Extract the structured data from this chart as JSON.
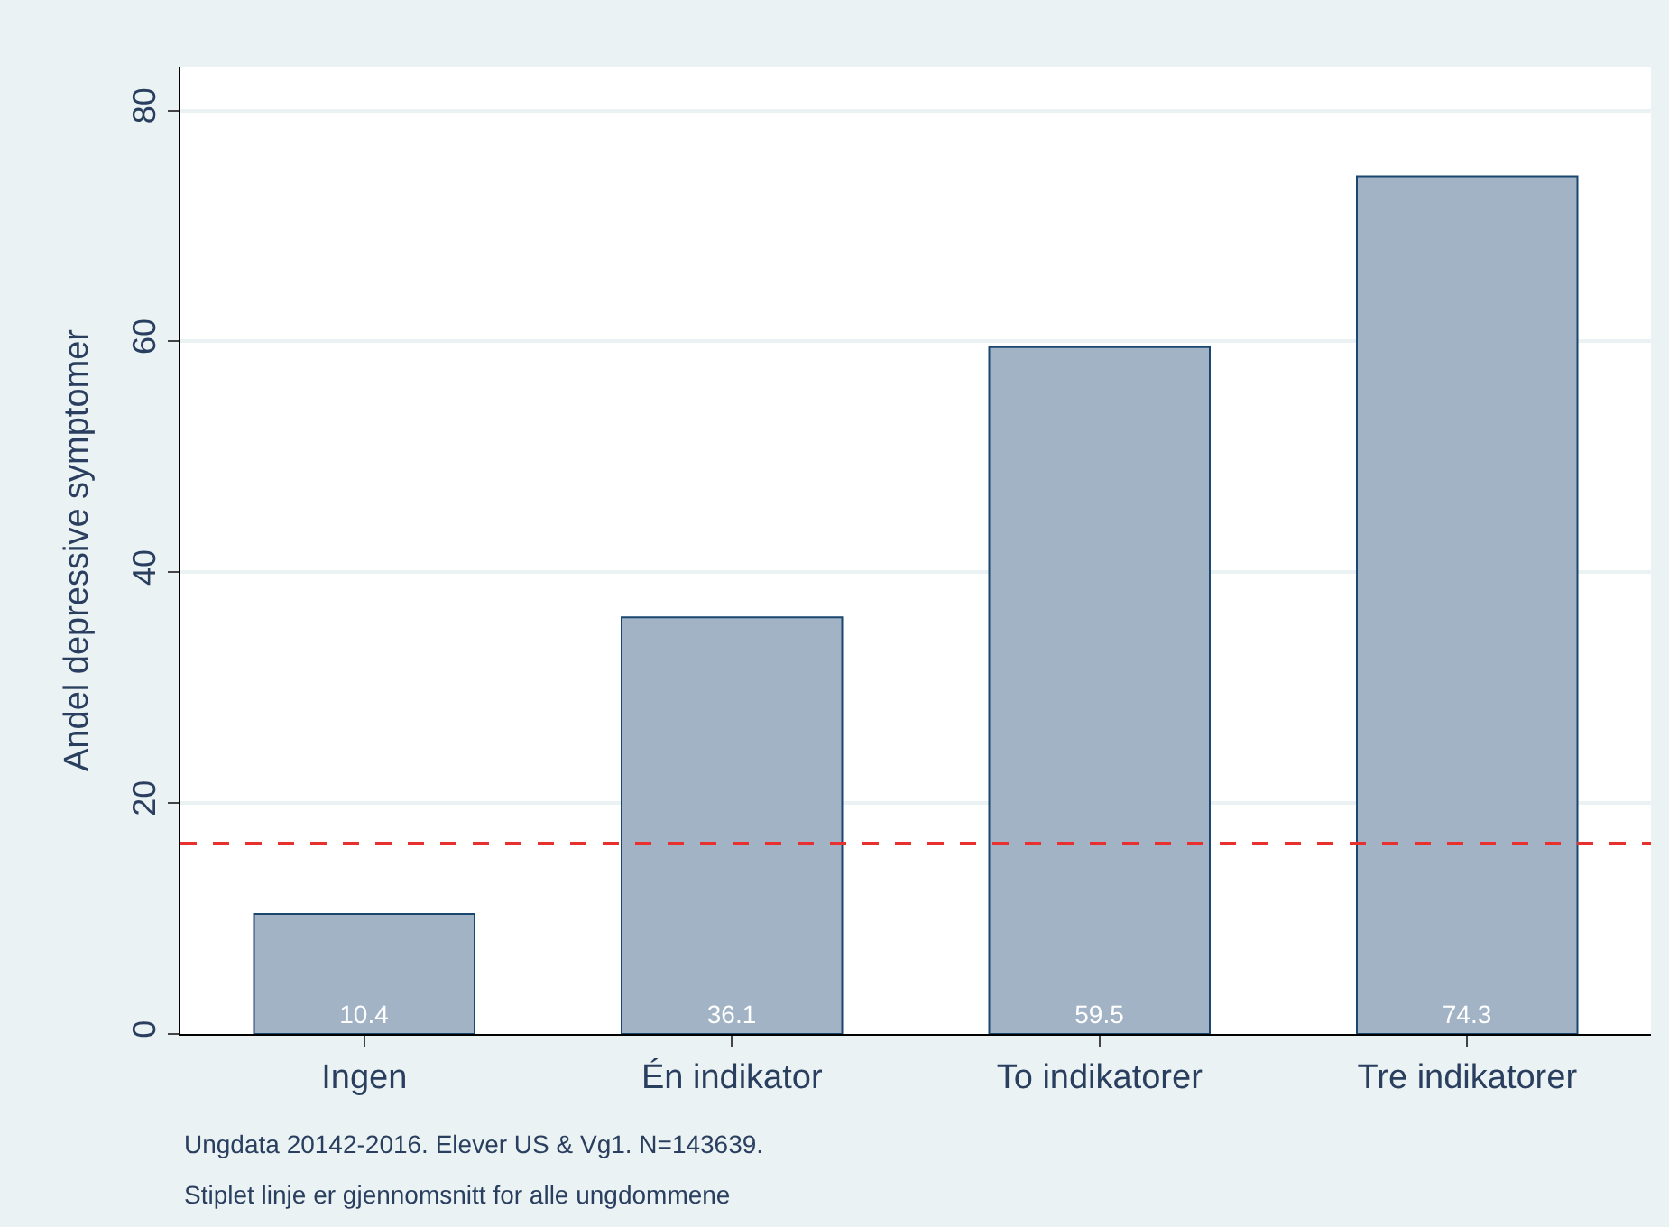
{
  "chart_data": {
    "type": "bar",
    "ylabel": "Andel depressive symptomer",
    "categories": [
      "Ingen",
      "Én indikator",
      "To indikatorer",
      "Tre indikatorer"
    ],
    "values": [
      10.4,
      36.1,
      59.5,
      74.3
    ],
    "color": "#a2b3c6",
    "data_labels": true,
    "ylim": [
      0,
      83.8
    ],
    "yticks": [
      0,
      20,
      40,
      60,
      80
    ],
    "grid": "y",
    "legend": false,
    "ref_lines": [
      {
        "axis": "y",
        "value": 16.5,
        "color": "#e8312f",
        "line_style": "dashed"
      }
    ],
    "annotations": [
      "Ungdata 20142-2016. Elever US & Vg1. N=143639.",
      "Stiplet linje er gjennomsnitt for alle ungdommene"
    ]
  }
}
